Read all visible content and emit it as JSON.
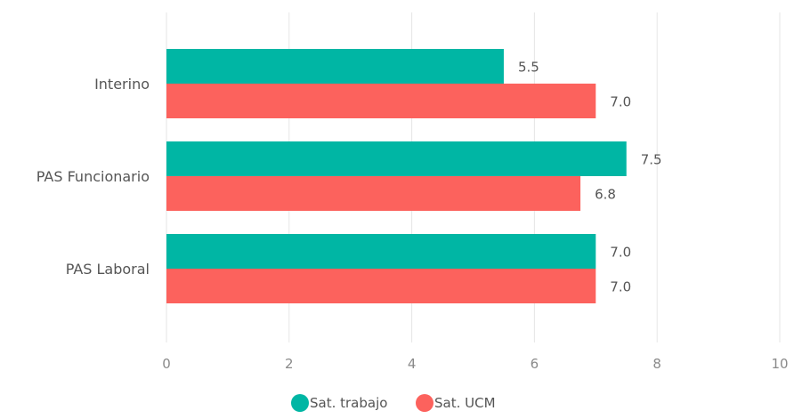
{
  "chart_data": {
    "type": "bar",
    "orientation": "horizontal",
    "title": "",
    "xlabel": "",
    "ylabel": "",
    "categories": [
      "Interino",
      "PAS Funcionario",
      "PAS Laboral"
    ],
    "series": [
      {
        "name": "Sat. trabajo",
        "color": "#00b6a4",
        "values": [
          5.5,
          7.5,
          7.0
        ],
        "labels": [
          "5.5",
          "7.5",
          "7.0"
        ]
      },
      {
        "name": "Sat. UCM",
        "color": "#fc625d",
        "values": [
          7.0,
          6.75,
          7.0
        ],
        "labels": [
          "7.0",
          "6.8",
          "7.0"
        ]
      }
    ],
    "xlim": [
      0,
      10
    ],
    "xticks": [
      0,
      2,
      4,
      6,
      8,
      10
    ],
    "xtick_labels": [
      "0",
      "2",
      "4",
      "6",
      "8",
      "10"
    ],
    "grid": "vertical",
    "legend_position": "bottom-center",
    "grid_color": "#e6e6e6"
  }
}
